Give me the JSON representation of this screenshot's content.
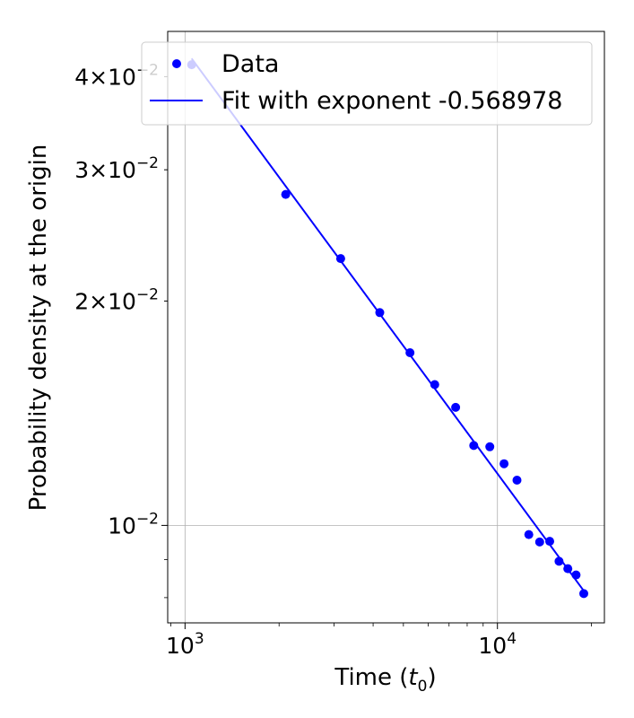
{
  "chart_data": {
    "type": "scatter",
    "title": "",
    "xlabel": "Time ($t_0$)",
    "ylabel": "Probability density at the origin",
    "x_scale": "log",
    "y_scale": "log",
    "xlim": [
      880,
      22000
    ],
    "ylim": [
      0.0074,
      0.046
    ],
    "grid": true,
    "legend_position": "top-right",
    "x_ticks": [
      {
        "value": 1000,
        "base": "10",
        "exp": "3"
      },
      {
        "value": 10000,
        "base": "10",
        "exp": "4"
      }
    ],
    "y_ticks": [
      {
        "value": 0.01,
        "base": "10",
        "exp": "−2"
      },
      {
        "value": 0.02,
        "mant": "2",
        "base": "10",
        "exp": "−2"
      },
      {
        "value": 0.03,
        "mant": "3",
        "base": "10",
        "exp": "−2"
      },
      {
        "value": 0.04,
        "mant": "4",
        "base": "10",
        "exp": "−2"
      }
    ],
    "series": [
      {
        "name": "Data",
        "kind": "scatter",
        "color": "#0000ff",
        "x": [
          1050,
          2100,
          3150,
          4200,
          5250,
          6300,
          7350,
          8400,
          9450,
          10500,
          11550,
          12600,
          13650,
          14700,
          15750,
          16800,
          17850,
          18900
        ],
        "y": [
          0.0415,
          0.0278,
          0.0228,
          0.0193,
          0.01705,
          0.01545,
          0.0144,
          0.0128,
          0.01275,
          0.0121,
          0.0115,
          0.00972,
          0.0095,
          0.00952,
          0.00895,
          0.00875,
          0.00858,
          0.0081
        ]
      },
      {
        "name": "Fit with exponent -0.568978",
        "kind": "line",
        "color": "#0000ff",
        "x": [
          1050,
          18900
        ],
        "y": [
          0.0423,
          0.00817
        ]
      }
    ]
  }
}
